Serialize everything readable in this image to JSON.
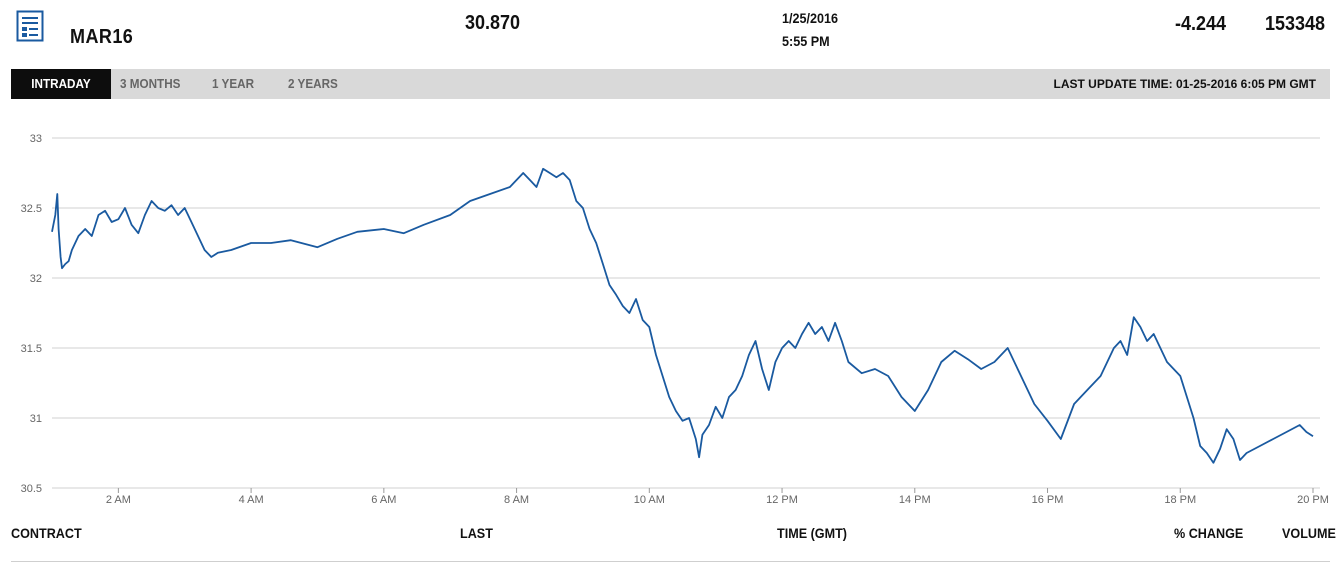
{
  "header": {
    "icon": "document-list-icon",
    "contract": "MAR16",
    "last": "30.870",
    "date": "1/25/2016",
    "time": "5:55 PM",
    "change": "-4.244",
    "volume": "153348"
  },
  "tabs": [
    {
      "label": "INTRADAY",
      "active": true
    },
    {
      "label": "3 MONTHS",
      "active": false
    },
    {
      "label": "1 YEAR",
      "active": false
    },
    {
      "label": "2 YEARS",
      "active": false
    }
  ],
  "last_update": "LAST UPDATE TIME: 01-25-2016 6:05 PM GMT",
  "footer": {
    "contract": "CONTRACT",
    "last": "LAST",
    "time": "TIME (GMT)",
    "change": "% CHANGE",
    "volume": "VOLUME"
  },
  "colors": {
    "line": "#1a5aa0",
    "grid": "#d0d0d0",
    "tab_active_bg": "#0d0d0d",
    "tabbar_bg": "#d9d9d9"
  },
  "chart_data": {
    "type": "line",
    "title": "",
    "xlabel": "",
    "ylabel": "",
    "ylim": [
      30.5,
      33
    ],
    "xlim": [
      1.0,
      20.0
    ],
    "yticks": [
      "30.5",
      "31",
      "31.5",
      "32",
      "32.5",
      "33"
    ],
    "xticks": [
      {
        "x": 2,
        "label": "2 AM"
      },
      {
        "x": 4,
        "label": "4 AM"
      },
      {
        "x": 6,
        "label": "6 AM"
      },
      {
        "x": 8,
        "label": "8 AM"
      },
      {
        "x": 10,
        "label": "10 AM"
      },
      {
        "x": 12,
        "label": "12 PM"
      },
      {
        "x": 14,
        "label": "14 PM"
      },
      {
        "x": 16,
        "label": "16 PM"
      },
      {
        "x": 18,
        "label": "18 PM"
      },
      {
        "x": 20,
        "label": "20 PM"
      }
    ],
    "grid": true,
    "series": [
      {
        "x": [
          1.0,
          1.05,
          1.08,
          1.1,
          1.13,
          1.15,
          1.2,
          1.25,
          1.3,
          1.4,
          1.5,
          1.6,
          1.7,
          1.8,
          1.9,
          2.0,
          2.1,
          2.2,
          2.3,
          2.4,
          2.5,
          2.6,
          2.7,
          2.8,
          2.9,
          3.0,
          3.1,
          3.2,
          3.3,
          3.4,
          3.5,
          3.7,
          4.0,
          4.3,
          4.6,
          5.0,
          5.3,
          5.6,
          6.0,
          6.3,
          6.6,
          7.0,
          7.3,
          7.6,
          7.9,
          8.1,
          8.2,
          8.3,
          8.4,
          8.5,
          8.6,
          8.7,
          8.8,
          8.9,
          9.0,
          9.1,
          9.2,
          9.3,
          9.4,
          9.5,
          9.6,
          9.7,
          9.8,
          9.9,
          10.0,
          10.1,
          10.2,
          10.3,
          10.4,
          10.5,
          10.6,
          10.7,
          10.75,
          10.8,
          10.9,
          11.0,
          11.1,
          11.2,
          11.3,
          11.4,
          11.5,
          11.6,
          11.7,
          11.8,
          11.9,
          12.0,
          12.1,
          12.2,
          12.3,
          12.4,
          12.5,
          12.6,
          12.7,
          12.8,
          12.9,
          13.0,
          13.2,
          13.4,
          13.6,
          13.8,
          14.0,
          14.2,
          14.4,
          14.6,
          14.8,
          15.0,
          15.2,
          15.4,
          15.6,
          15.8,
          16.0,
          16.2,
          16.4,
          16.6,
          16.8,
          17.0,
          17.1,
          17.2,
          17.3,
          17.4,
          17.5,
          17.6,
          17.8,
          18.0,
          18.1,
          18.2,
          18.3,
          18.4,
          18.5,
          18.6,
          18.7,
          18.8,
          18.9,
          19.0,
          19.2,
          19.4,
          19.6,
          19.8,
          19.9,
          20.0
        ],
        "y": [
          32.33,
          32.45,
          32.6,
          32.35,
          32.15,
          32.07,
          32.1,
          32.12,
          32.2,
          32.3,
          32.35,
          32.3,
          32.45,
          32.48,
          32.4,
          32.42,
          32.5,
          32.38,
          32.32,
          32.45,
          32.55,
          32.5,
          32.48,
          32.52,
          32.45,
          32.5,
          32.4,
          32.3,
          32.2,
          32.15,
          32.18,
          32.2,
          32.25,
          32.25,
          32.27,
          32.22,
          32.28,
          32.33,
          32.35,
          32.32,
          32.38,
          32.45,
          32.55,
          32.6,
          32.65,
          32.75,
          32.7,
          32.65,
          32.78,
          32.75,
          32.72,
          32.75,
          32.7,
          32.55,
          32.5,
          32.35,
          32.25,
          32.1,
          31.95,
          31.88,
          31.8,
          31.75,
          31.85,
          31.7,
          31.65,
          31.45,
          31.3,
          31.15,
          31.05,
          30.98,
          31.0,
          30.85,
          30.72,
          30.88,
          30.95,
          31.08,
          31.0,
          31.15,
          31.2,
          31.3,
          31.45,
          31.55,
          31.35,
          31.2,
          31.4,
          31.5,
          31.55,
          31.5,
          31.6,
          31.68,
          31.6,
          31.65,
          31.55,
          31.68,
          31.55,
          31.4,
          31.32,
          31.35,
          31.3,
          31.15,
          31.05,
          31.2,
          31.4,
          31.48,
          31.42,
          31.35,
          31.4,
          31.5,
          31.3,
          31.1,
          30.98,
          30.85,
          31.1,
          31.2,
          31.3,
          31.5,
          31.55,
          31.45,
          31.72,
          31.65,
          31.55,
          31.6,
          31.4,
          31.3,
          31.15,
          31.0,
          30.8,
          30.75,
          30.68,
          30.78,
          30.92,
          30.85,
          30.7,
          30.75,
          30.8,
          30.85,
          30.9,
          30.95,
          30.9,
          30.87
        ]
      }
    ]
  }
}
